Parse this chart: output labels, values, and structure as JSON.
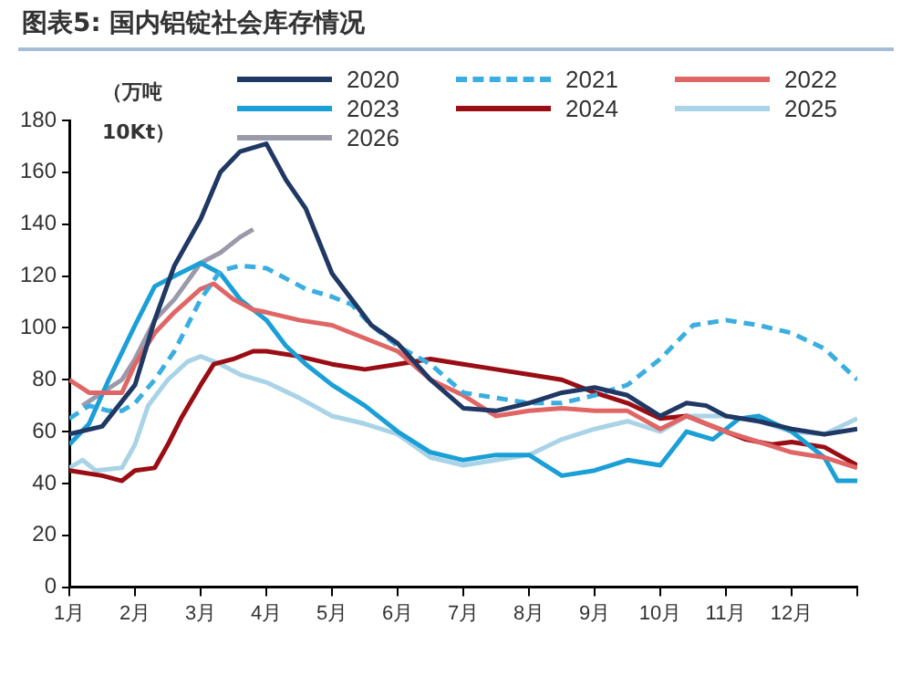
{
  "chart_data": {
    "type": "line",
    "title": "图表5:  国内铝锭社会库存情况",
    "ylabel": "（万吨 10Kt）",
    "xlim": [
      1,
      13
    ],
    "xticks": [
      {
        "value": 1,
        "label": "1月"
      },
      {
        "value": 2,
        "label": "2月"
      },
      {
        "value": 3,
        "label": "3月"
      },
      {
        "value": 4,
        "label": "4月"
      },
      {
        "value": 5,
        "label": "5月"
      },
      {
        "value": 6,
        "label": "6月"
      },
      {
        "value": 7,
        "label": "7月"
      },
      {
        "value": 8,
        "label": "8月"
      },
      {
        "value": 9,
        "label": "9月"
      },
      {
        "value": 10,
        "label": "10月"
      },
      {
        "value": 11,
        "label": "11月"
      },
      {
        "value": 12,
        "label": "12月"
      },
      {
        "value": 13,
        "label": null
      }
    ],
    "ylim": [
      0,
      180
    ],
    "yticks": [
      0,
      20,
      40,
      60,
      80,
      100,
      120,
      140,
      160,
      180
    ],
    "grid": false,
    "legend": "top",
    "marker": "none",
    "line_style": "solid",
    "series": [
      {
        "name": "2020",
        "color": "#1f3864",
        "x": [
          1,
          1.5,
          2,
          2.3,
          2.6,
          3,
          3.3,
          3.6,
          4,
          4.3,
          4.6,
          5,
          5.3,
          5.6,
          6,
          6.5,
          7,
          7.5,
          8,
          8.5,
          9,
          9.5,
          10,
          10.4,
          10.7,
          11,
          11.5,
          12,
          12.5,
          13
        ],
        "values": [
          59,
          62,
          78,
          103,
          124,
          142,
          160,
          168,
          171,
          157,
          146,
          121,
          111,
          101,
          94,
          80,
          69,
          68,
          71,
          75,
          77,
          74,
          66,
          71,
          70,
          66,
          64,
          61,
          59,
          61
        ]
      },
      {
        "name": "2021",
        "color": "#3aaee0",
        "line_style": "dashed",
        "x": [
          1,
          1.3,
          1.6,
          1.8,
          2,
          2.3,
          2.6,
          3,
          3.3,
          3.6,
          4,
          4.3,
          4.6,
          5,
          5.3,
          5.6,
          6,
          6.5,
          7,
          7.5,
          8,
          8.5,
          9,
          9.5,
          10,
          10.5,
          11,
          11.5,
          12,
          12.5,
          13
        ],
        "values": [
          65,
          70,
          68,
          68,
          71,
          80,
          91,
          111,
          122,
          124,
          123,
          119,
          115,
          112,
          109,
          101,
          93,
          86,
          75,
          73,
          71,
          71,
          74,
          78,
          88,
          101,
          103,
          101,
          98,
          92,
          80
        ]
      },
      {
        "name": "2022",
        "color": "#e06666",
        "x": [
          1,
          1.3,
          1.6,
          1.8,
          2,
          2.3,
          2.6,
          3,
          3.2,
          3.5,
          3.8,
          4,
          4.5,
          5,
          5.5,
          6,
          6.5,
          7,
          7.5,
          8,
          8.5,
          9,
          9.5,
          10,
          10.4,
          11,
          11.5,
          12,
          12.5,
          13
        ],
        "values": [
          80,
          75,
          75,
          75,
          86,
          98,
          106,
          115,
          117,
          111,
          107,
          106,
          103,
          101,
          96,
          91,
          80,
          74,
          66,
          68,
          69,
          68,
          68,
          61,
          66,
          60,
          56,
          52,
          50,
          46
        ]
      },
      {
        "name": "2023",
        "color": "#1a9fd6",
        "x": [
          1,
          1.3,
          1.6,
          2,
          2.3,
          2.6,
          3,
          3.3,
          3.6,
          4,
          4.3,
          4.6,
          5,
          5.5,
          6,
          6.5,
          7,
          7.5,
          8,
          8.5,
          9,
          9.5,
          10,
          10.4,
          10.8,
          11.2,
          11.5,
          12,
          12.5,
          12.7,
          13
        ],
        "values": [
          55,
          63,
          80,
          101,
          116,
          120,
          125,
          121,
          111,
          103,
          93,
          86,
          78,
          70,
          60,
          52,
          49,
          51,
          51,
          43,
          45,
          49,
          47,
          60,
          57,
          65,
          66,
          60,
          50,
          41,
          41
        ]
      },
      {
        "name": "2024",
        "color": "#9b0d14",
        "x": [
          1,
          1.5,
          1.8,
          2,
          2.3,
          2.5,
          2.7,
          3,
          3.2,
          3.5,
          3.8,
          4,
          4.5,
          5,
          5.5,
          6,
          6.5,
          7,
          7.5,
          8,
          8.5,
          9,
          9.5,
          10,
          10.4,
          11,
          11.3,
          11.7,
          12,
          12.5,
          13
        ],
        "values": [
          45,
          43,
          41,
          45,
          46,
          55,
          65,
          78,
          86,
          88,
          91,
          91,
          89,
          86,
          84,
          86,
          88,
          86,
          84,
          82,
          80,
          75,
          71,
          65,
          66,
          60,
          57,
          55,
          56,
          54,
          47
        ]
      },
      {
        "name": "2025",
        "color": "#a9d3e6",
        "x": [
          1,
          1.2,
          1.4,
          1.8,
          2,
          2.2,
          2.5,
          2.8,
          3,
          3.3,
          3.6,
          4,
          4.5,
          5,
          5.5,
          6,
          6.5,
          7,
          7.5,
          8,
          8.5,
          9,
          9.5,
          10,
          10.4,
          11,
          11.5,
          12,
          12.5,
          13
        ],
        "values": [
          46,
          49,
          45,
          46,
          55,
          70,
          80,
          87,
          89,
          86,
          82,
          79,
          73,
          66,
          63,
          59,
          50,
          47,
          49,
          51,
          57,
          61,
          64,
          60,
          66,
          66,
          64,
          60,
          59,
          65
        ]
      },
      {
        "name": "2026",
        "color": "#9a9aab",
        "x": [
          1.2,
          1.5,
          1.8,
          2,
          2.3,
          2.6,
          3,
          3.3,
          3.6,
          3.8
        ],
        "values": [
          70,
          75,
          80,
          88,
          103,
          111,
          125,
          129,
          135,
          138
        ]
      }
    ]
  }
}
